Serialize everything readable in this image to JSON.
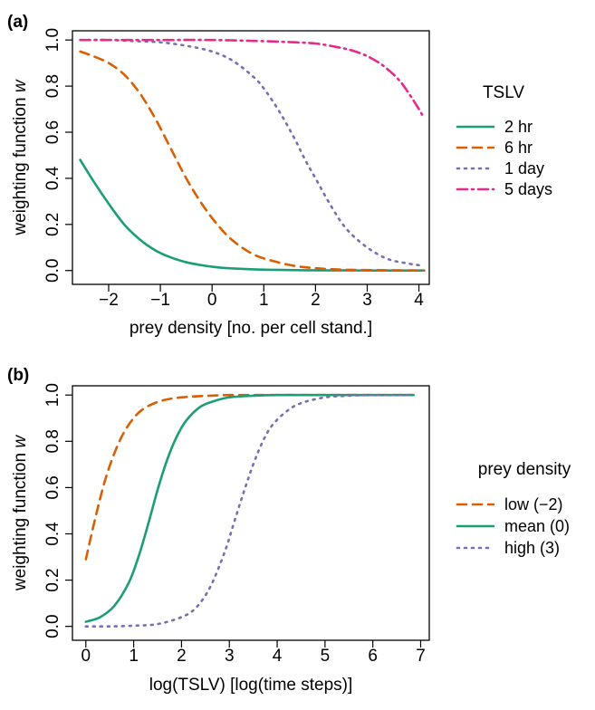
{
  "chart_data": [
    {
      "type": "line",
      "panel_label": "(a)",
      "xlabel": "prey density [no. per cell stand.]",
      "ylabel_prefix": "weighting function ",
      "ylabel_var": "w",
      "xlim": [
        -2.7,
        4.2
      ],
      "ylim": [
        -0.06,
        1.04
      ],
      "xticks": [
        -2,
        -1,
        0,
        1,
        2,
        3,
        4
      ],
      "xtick_labels": [
        "−2",
        "−1",
        "0",
        "1",
        "2",
        "3",
        "4"
      ],
      "yticks": [
        0,
        0.2,
        0.4,
        0.6,
        0.8,
        1
      ],
      "ytick_labels": [
        "0.0",
        "0.2",
        "0.4",
        "0.6",
        "0.8",
        "1.0"
      ],
      "legend_title": "TSLV",
      "legend_position": "right",
      "grid": false,
      "series": [
        {
          "name": "2 hr",
          "color": "#1b9e77",
          "dash": "solid",
          "x": [
            -2.55,
            -2.3,
            -2.0,
            -1.7,
            -1.4,
            -1.1,
            -0.8,
            -0.5,
            -0.2,
            0.1,
            0.4,
            0.8,
            1.2,
            1.8,
            2.5,
            3.2,
            4.1
          ],
          "y": [
            0.48,
            0.39,
            0.29,
            0.2,
            0.135,
            0.088,
            0.057,
            0.036,
            0.023,
            0.014,
            0.009,
            0.005,
            0.003,
            0.001,
            0.0005,
            0.0002,
            0.0
          ]
        },
        {
          "name": "6 hr",
          "color": "#d95f02",
          "dash": "dashed",
          "x": [
            -2.55,
            -2.3,
            -2.0,
            -1.7,
            -1.4,
            -1.1,
            -0.8,
            -0.5,
            -0.2,
            0.1,
            0.4,
            0.8,
            1.2,
            1.6,
            2.0,
            2.5,
            3.0,
            3.5,
            4.1
          ],
          "y": [
            0.95,
            0.93,
            0.9,
            0.85,
            0.77,
            0.66,
            0.53,
            0.4,
            0.29,
            0.2,
            0.13,
            0.07,
            0.04,
            0.02,
            0.01,
            0.004,
            0.002,
            0.001,
            0.0
          ]
        },
        {
          "name": "1 day",
          "color": "#7570b3",
          "dash": "dotted",
          "x": [
            -2.55,
            -2.0,
            -1.5,
            -1.0,
            -0.5,
            0.0,
            0.4,
            0.8,
            1.0,
            1.3,
            1.6,
            1.8,
            2.0,
            2.3,
            2.6,
            3.0,
            3.4,
            3.8,
            4.1
          ],
          "y": [
            1.0,
            1.0,
            0.995,
            0.99,
            0.975,
            0.95,
            0.91,
            0.84,
            0.79,
            0.69,
            0.57,
            0.48,
            0.4,
            0.28,
            0.18,
            0.1,
            0.05,
            0.03,
            0.02
          ]
        },
        {
          "name": "5 days",
          "color": "#e7298a",
          "dash": "dashdot",
          "x": [
            -2.55,
            -2.0,
            -1.0,
            0.0,
            1.0,
            1.6,
            2.0,
            2.4,
            2.7,
            3.0,
            3.3,
            3.6,
            3.8,
            4.0,
            4.1
          ],
          "y": [
            1.0,
            1.0,
            1.0,
            1.0,
            0.995,
            0.99,
            0.985,
            0.97,
            0.955,
            0.93,
            0.89,
            0.83,
            0.77,
            0.7,
            0.66
          ]
        }
      ]
    },
    {
      "type": "line",
      "panel_label": "(b)",
      "xlabel": "log(TSLV) [log(time steps)]",
      "ylabel_prefix": "weighting function ",
      "ylabel_var": "w",
      "xlim": [
        -0.28,
        7.18
      ],
      "ylim": [
        -0.06,
        1.04
      ],
      "xticks": [
        0,
        1,
        2,
        3,
        4,
        5,
        6,
        7
      ],
      "xtick_labels": [
        "0",
        "1",
        "2",
        "3",
        "4",
        "5",
        "6",
        "7"
      ],
      "yticks": [
        0,
        0.2,
        0.4,
        0.6,
        0.8,
        1
      ],
      "ytick_labels": [
        "0.0",
        "0.2",
        "0.4",
        "0.6",
        "0.8",
        "1.0"
      ],
      "legend_title": "prey density",
      "legend_position": "right",
      "grid": false,
      "series": [
        {
          "name": "low (−2)",
          "color": "#d95f02",
          "dash": "dashed",
          "x": [
            0,
            0.2,
            0.4,
            0.6,
            0.8,
            1.0,
            1.2,
            1.5,
            1.8,
            2.2,
            2.6,
            3.0,
            4.0,
            5.0,
            6.0,
            6.85
          ],
          "y": [
            0.29,
            0.47,
            0.63,
            0.75,
            0.84,
            0.9,
            0.94,
            0.97,
            0.985,
            0.993,
            0.997,
            1.0,
            1.0,
            1.0,
            1.0,
            1.0
          ]
        },
        {
          "name": "mean (0)",
          "color": "#1b9e77",
          "dash": "solid",
          "x": [
            0,
            0.3,
            0.6,
            0.9,
            1.1,
            1.3,
            1.5,
            1.7,
            1.9,
            2.1,
            2.4,
            2.7,
            3.0,
            3.5,
            4.0,
            5.0,
            6.0,
            6.85
          ],
          "y": [
            0.02,
            0.04,
            0.09,
            0.19,
            0.3,
            0.44,
            0.59,
            0.72,
            0.82,
            0.89,
            0.95,
            0.975,
            0.99,
            0.997,
            1.0,
            1.0,
            1.0,
            1.0
          ]
        },
        {
          "name": "high (3)",
          "color": "#7570b3",
          "dash": "dotted",
          "x": [
            0,
            0.5,
            1.0,
            1.5,
            2.0,
            2.3,
            2.6,
            2.9,
            3.1,
            3.3,
            3.5,
            3.7,
            3.9,
            4.2,
            4.5,
            5.0,
            5.5,
            6.0,
            6.85
          ],
          "y": [
            0.0,
            0.0,
            0.003,
            0.01,
            0.04,
            0.08,
            0.17,
            0.32,
            0.45,
            0.58,
            0.7,
            0.8,
            0.87,
            0.93,
            0.965,
            0.99,
            0.997,
            1.0,
            1.0
          ]
        }
      ]
    }
  ]
}
